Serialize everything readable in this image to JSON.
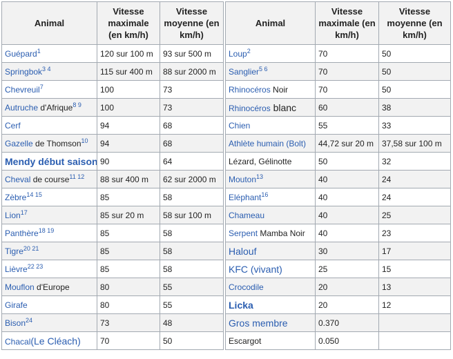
{
  "tables": [
    {
      "header": [
        "Animal",
        "Vitesse maximale (en km/h)",
        "Vitesse moyenne (en km/h)"
      ],
      "rows": [
        [
          [
            {
              "link": "Guépard"
            },
            {
              "sup": "1"
            }
          ],
          "120 sur 100 m",
          "93 sur 500 m"
        ],
        [
          [
            {
              "link": "Springbok"
            },
            {
              "sup": "3 4"
            }
          ],
          "115 sur 400 m",
          "88 sur 2000 m"
        ],
        [
          [
            {
              "link": "Chevreuil"
            },
            {
              "sup": "7"
            }
          ],
          "100",
          "73"
        ],
        [
          [
            {
              "link": "Autruche"
            },
            {
              "text": " d'Afrique"
            },
            {
              "sup": "8 9"
            }
          ],
          "100",
          "73"
        ],
        [
          [
            {
              "link": "Cerf"
            }
          ],
          "94",
          "68"
        ],
        [
          [
            {
              "link": "Gazelle"
            },
            {
              "text": " de Thomson"
            },
            {
              "sup": "10"
            }
          ],
          "94",
          "68"
        ],
        [
          [
            {
              "bold_link": "Mendy début saison"
            }
          ],
          "90",
          "64"
        ],
        [
          [
            {
              "link": "Cheval"
            },
            {
              "text": " de course"
            },
            {
              "sup": "11 12"
            }
          ],
          "88 sur 400 m",
          "62 sur 2000 m"
        ],
        [
          [
            {
              "link": "Zèbre"
            },
            {
              "sup": "14 15"
            }
          ],
          "85",
          "58"
        ],
        [
          [
            {
              "link": "Lion"
            },
            {
              "sup": "17"
            }
          ],
          "85 sur 20 m",
          "58 sur 100 m"
        ],
        [
          [
            {
              "link": "Panthère"
            },
            {
              "sup": "18 19"
            }
          ],
          "85",
          "58"
        ],
        [
          [
            {
              "link": "Tigre"
            },
            {
              "sup": "20 21"
            }
          ],
          "85",
          "58"
        ],
        [
          [
            {
              "link": "Lièvre"
            },
            {
              "sup": "22 23"
            }
          ],
          "85",
          "58"
        ],
        [
          [
            {
              "link": "Mouflon"
            },
            {
              "text": " d'Europe"
            }
          ],
          "80",
          "55"
        ],
        [
          [
            {
              "link": "Girafe"
            }
          ],
          "80",
          "55"
        ],
        [
          [
            {
              "link": "Bison"
            },
            {
              "sup": "24"
            }
          ],
          "73",
          "48"
        ],
        [
          [
            {
              "link": "Chacal"
            },
            {
              "big_link": "(Le Cléach)"
            }
          ],
          "70",
          "50"
        ]
      ]
    },
    {
      "header": [
        "Animal",
        "Vitesse maximale (en km/h)",
        "Vitesse moyenne (en km/h)"
      ],
      "rows": [
        [
          [
            {
              "link": "Loup"
            },
            {
              "sup": "2"
            }
          ],
          "70",
          "50"
        ],
        [
          [
            {
              "link": "Sanglier"
            },
            {
              "sup": "5 6"
            }
          ],
          "70",
          "50"
        ],
        [
          [
            {
              "link": "Rhinocéros"
            },
            {
              "text": " Noir"
            }
          ],
          "70",
          "50"
        ],
        [
          [
            {
              "link": "Rhinocéros"
            },
            {
              "big_text": " blanc"
            }
          ],
          "60",
          "38"
        ],
        [
          [
            {
              "link": "Chien"
            }
          ],
          "55",
          "33"
        ],
        [
          [
            {
              "link": "Athlète humain (Bolt)"
            }
          ],
          "44,72 sur 20 m",
          "37,58 sur 100 m"
        ],
        [
          [
            {
              "text": "Lézard, Gélinotte"
            }
          ],
          "50",
          "32"
        ],
        [
          [
            {
              "link": "Mouton"
            },
            {
              "sup": "13"
            }
          ],
          "40",
          "24"
        ],
        [
          [
            {
              "link": "Eléphant"
            },
            {
              "sup": "16"
            }
          ],
          "40",
          "24"
        ],
        [
          [
            {
              "link": "Chameau"
            }
          ],
          "40",
          "25"
        ],
        [
          [
            {
              "link": "Serpent"
            },
            {
              "text": " Mamba Noir"
            }
          ],
          "40",
          "23"
        ],
        [
          [
            {
              "big_link": "Halouf"
            }
          ],
          "30",
          "17"
        ],
        [
          [
            {
              "big_link": "KFC (vivant)"
            }
          ],
          "25",
          "15"
        ],
        [
          [
            {
              "link": "Crocodile"
            }
          ],
          "20",
          "13"
        ],
        [
          [
            {
              "bold_link": "Licka"
            }
          ],
          "20",
          "12"
        ],
        [
          [
            {
              "big_link": "Gros membre"
            }
          ],
          "0.370"
        ],
        [
          [
            {
              "text": "Escargot"
            }
          ],
          "0.050"
        ]
      ]
    }
  ]
}
